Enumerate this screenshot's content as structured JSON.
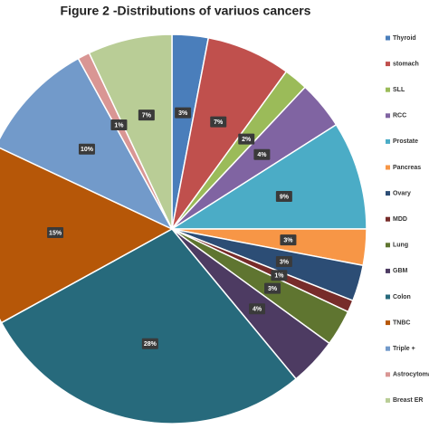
{
  "chart_data": {
    "type": "pie",
    "title": "Figure 2 -Distributions of  variuos cancers",
    "categories": [
      "Thyroid",
      "stomach",
      "SLL",
      "RCC",
      "Prostate",
      "Pancreas",
      "Ovary",
      "MDD",
      "Lung",
      "GBM",
      "Colon",
      "TNBC",
      "Triple +",
      "Astrocytoma",
      "Breast ER"
    ],
    "values": [
      3,
      7,
      2,
      4,
      9,
      3,
      3,
      1,
      3,
      4,
      28,
      15,
      10,
      1,
      7
    ],
    "value_labels": [
      "3%",
      "7%",
      "2%",
      "4%",
      "9%",
      "3%",
      "3%",
      "1%",
      "3%",
      "4%",
      "28%",
      "15%",
      "10%",
      "1%",
      "7%"
    ],
    "colors": [
      "#4a7ebb",
      "#c0504d",
      "#9bbb59",
      "#8064a2",
      "#4bacc6",
      "#f79646",
      "#2c4d75",
      "#772c2a",
      "#5f7530",
      "#4d3b62",
      "#276a7c",
      "#b65708",
      "#729aca",
      "#d99694",
      "#b9cd96"
    ],
    "legend": "right"
  }
}
